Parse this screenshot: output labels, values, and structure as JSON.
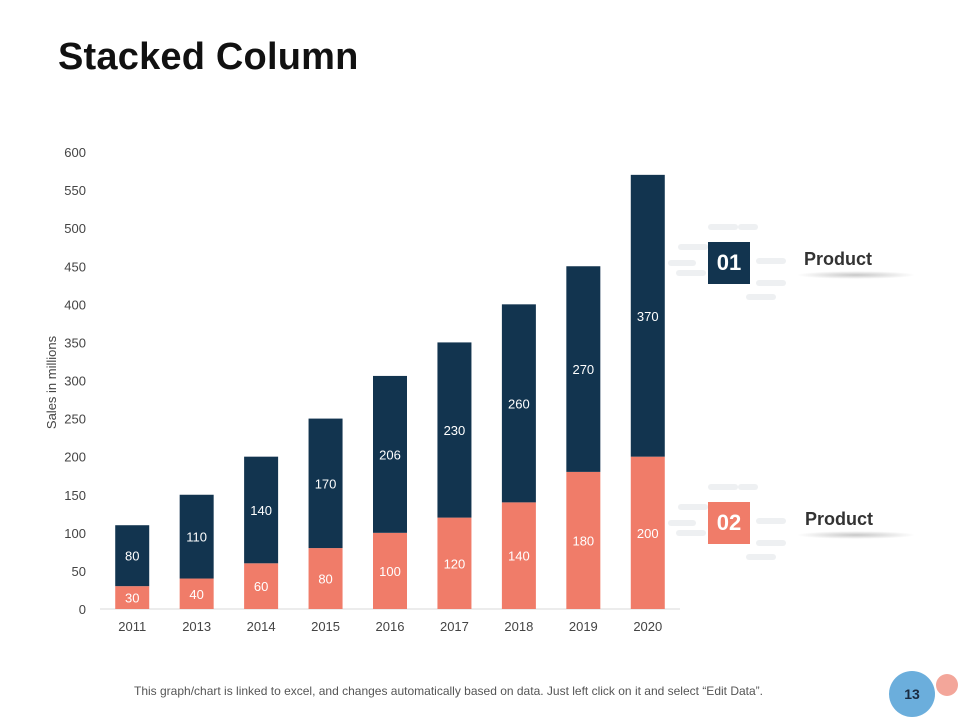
{
  "page": {
    "title": "Stacked Column",
    "footer_note": "This graph/chart is linked to excel, and changes automatically based on data. Just left click on it and select “Edit Data”.",
    "page_number": "13"
  },
  "legend": [
    {
      "badge": "01",
      "label": "Product",
      "color": "#12344f"
    },
    {
      "badge": "02",
      "label": "Product",
      "color": "#f07c69"
    }
  ],
  "colors": {
    "series_dark": "#12344f",
    "series_coral": "#f07c69",
    "axis_text": "#444444",
    "page_circle": "#6baedc",
    "page_dot": "#f3a69a"
  },
  "chart_data": {
    "type": "bar",
    "stacked": true,
    "title": "",
    "xlabel": "",
    "ylabel": "Sales in millions",
    "ylim": [
      0,
      600
    ],
    "yticks": [
      0,
      50,
      100,
      150,
      200,
      250,
      300,
      350,
      400,
      450,
      500,
      550,
      600
    ],
    "categories": [
      "2011",
      "2013",
      "2014",
      "2015",
      "2016",
      "2017",
      "2018",
      "2019",
      "2020"
    ],
    "series": [
      {
        "name": "Product 02",
        "color": "#f07c69",
        "values": [
          30,
          40,
          60,
          80,
          100,
          120,
          140,
          180,
          200
        ]
      },
      {
        "name": "Product 01",
        "color": "#12344f",
        "values": [
          80,
          110,
          140,
          170,
          206,
          230,
          260,
          270,
          370
        ]
      }
    ]
  }
}
